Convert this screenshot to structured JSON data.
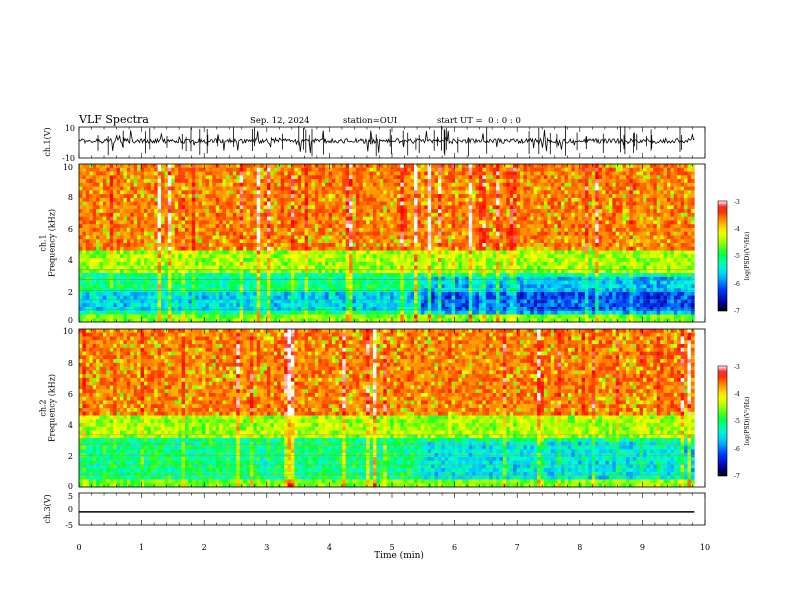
{
  "header": {
    "title": "VLF Spectra",
    "date": "Sep. 12, 2024",
    "station": "station=OUI",
    "start_ut": "start UT =  0 : 0 : 0"
  },
  "chart_data": [
    {
      "type": "line",
      "panel": "waveform-ch1",
      "ylabel": "ch.1(V)",
      "ylim": [
        -10,
        10
      ],
      "yticks": [
        "10",
        "-10"
      ],
      "baseline": 1,
      "xlim": [
        0,
        10
      ],
      "series": [
        {
          "color": "#000000"
        }
      ]
    },
    {
      "type": "heatmap",
      "panel": "spectrogram-ch1",
      "ylabel": "ch.1\nFrequency (kHz)",
      "ylim": [
        0,
        10
      ],
      "yticks": [
        "0",
        "2",
        "4",
        "6",
        "8",
        "10"
      ],
      "xlim": [
        0,
        9.83
      ],
      "colorbar": {
        "label": "log(PSD)(V²/Hz)",
        "min": -7,
        "max": -3,
        "ticks": [
          "-3",
          "-4",
          "-5",
          "-6",
          "-7"
        ]
      }
    },
    {
      "type": "heatmap",
      "panel": "spectrogram-ch2",
      "ylabel": "ch.2\nFrequency (kHz)",
      "ylim": [
        0,
        10
      ],
      "yticks": [
        "0",
        "2",
        "4",
        "6",
        "8",
        "10"
      ],
      "xlim": [
        0,
        9.83
      ],
      "colorbar": {
        "label": "log(PSD)(V²/Hz)",
        "min": -7,
        "max": -3,
        "ticks": [
          "-3",
          "-4",
          "-5",
          "-6",
          "-7"
        ]
      }
    },
    {
      "type": "line",
      "panel": "waveform-ch3",
      "ylabel": "ch.3(V)",
      "ylim": [
        -5,
        5
      ],
      "yticks": [
        "5",
        "0",
        "-5"
      ],
      "xlim": [
        0,
        10
      ],
      "series": [
        {
          "color": "#000000",
          "x": [
            0,
            9.83
          ],
          "y": [
            -0.9,
            -0.9
          ]
        }
      ]
    }
  ],
  "xaxis": {
    "label": "Time (min)",
    "ticks": [
      "0",
      "1",
      "2",
      "3",
      "4",
      "5",
      "6",
      "7",
      "8",
      "9",
      "10"
    ],
    "xlim": [
      0,
      10
    ]
  },
  "colors": {
    "scale": [
      "#000000",
      "#0000ff",
      "#00aaff",
      "#00ffff",
      "#00ff66",
      "#66ff00",
      "#ffff00",
      "#ff8800",
      "#ff0000",
      "#ffffff"
    ]
  }
}
